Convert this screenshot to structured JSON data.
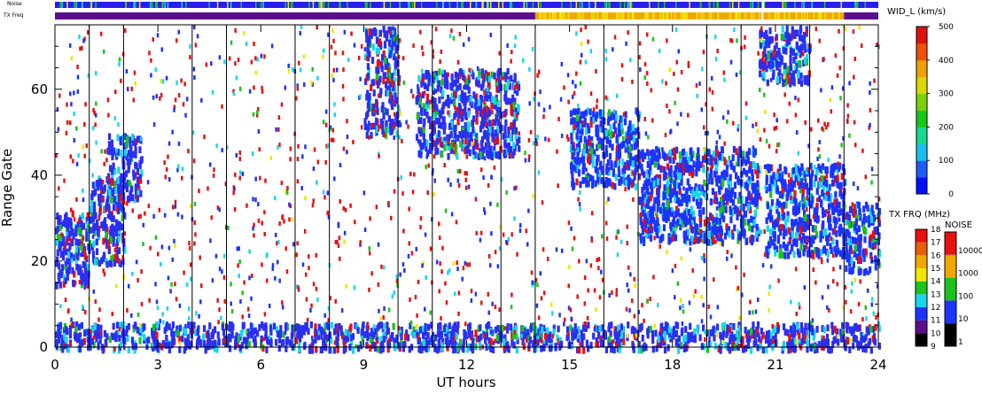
{
  "chart_data": {
    "type": "heatmap",
    "title": "",
    "xlabel": "UT hours",
    "ylabel": "Range Gate",
    "xlim": [
      0,
      24
    ],
    "ylim": [
      0,
      75
    ],
    "x_ticks": [
      0,
      3,
      6,
      9,
      12,
      15,
      18,
      21,
      24
    ],
    "y_ticks": [
      0,
      20,
      40,
      60
    ],
    "vertical_lines_at_hours": [
      1,
      2,
      4,
      5,
      7,
      8,
      10,
      11,
      13,
      14,
      16,
      17,
      19,
      20,
      22,
      23
    ],
    "grid": false,
    "top_strips": [
      {
        "label": "Noise",
        "dominant_color": "#2a1df0",
        "segments": [
          {
            "start": 0,
            "end": 24,
            "color": "#2a1df0"
          }
        ],
        "gap_near_hours": [
          20.6
        ]
      },
      {
        "label": "TX Freq",
        "segments": [
          {
            "start": 0,
            "end": 14,
            "color": "#5a0f8c"
          },
          {
            "start": 14,
            "end": 20.6,
            "color": "#f0a800"
          },
          {
            "start": 20.6,
            "end": 20.65,
            "color": "#ffffff"
          },
          {
            "start": 20.65,
            "end": 23,
            "color": "#f0a800"
          },
          {
            "start": 23,
            "end": 24,
            "color": "#5a0f8c"
          }
        ]
      }
    ],
    "scatter_regions": [
      {
        "hours": [
          0.0,
          1.0
        ],
        "gates": [
          15,
          32
        ],
        "color": "#2a2ff0"
      },
      {
        "hours": [
          1.0,
          2.0
        ],
        "gates": [
          20,
          40
        ],
        "color": "#2a2ff0"
      },
      {
        "hours": [
          1.5,
          2.5
        ],
        "gates": [
          35,
          50
        ],
        "color": "#2a2ff0"
      },
      {
        "hours": [
          9.0,
          10.0
        ],
        "gates": [
          50,
          75
        ],
        "color": "#2a2ff0"
      },
      {
        "hours": [
          10.5,
          13.5
        ],
        "gates": [
          45,
          65
        ],
        "color": "#2a2ff0"
      },
      {
        "hours": [
          15.0,
          17.0
        ],
        "gates": [
          38,
          56
        ],
        "color": "#1d33ff"
      },
      {
        "hours": [
          17.0,
          20.5
        ],
        "gates": [
          25,
          47
        ],
        "color": "#1d33ff"
      },
      {
        "hours": [
          20.7,
          23.0
        ],
        "gates": [
          22,
          43
        ],
        "color": "#1d33ff"
      },
      {
        "hours": [
          23.0,
          24.0
        ],
        "gates": [
          18,
          34
        ],
        "color": "#1d33ff"
      },
      {
        "hours": [
          20.5,
          22.0
        ],
        "gates": [
          62,
          75
        ],
        "color": "#2a2ff0"
      },
      {
        "hours": [
          0.0,
          24.0
        ],
        "gates": [
          0,
          6
        ],
        "color": "#2a2ff0"
      }
    ],
    "colorbars": [
      {
        "name": "WID_L (km/s)",
        "ticks": [
          0,
          100,
          200,
          300,
          400,
          500
        ]
      },
      {
        "name": "TX FRQ (MHz)",
        "ticks": [
          9,
          10,
          11,
          12,
          13,
          14,
          15,
          16,
          17,
          18
        ]
      },
      {
        "name": "NOISE",
        "ticks": [
          "1",
          "10",
          "100",
          "1000",
          "10000"
        ]
      }
    ]
  },
  "labels": {
    "noise_strip": "Noise",
    "txfreq_strip": "TX Freq",
    "xlabel": "UT hours",
    "ylabel": "Range Gate",
    "wid_title": "WID_L (km/s)",
    "txfrq_title": "TX FRQ (MHz)",
    "noise_title": "NOISE"
  },
  "colors": {
    "blue": "#1d33ff",
    "cyan": "#18d7ec",
    "green": "#1cc31c",
    "red": "#e81010",
    "yellow": "#f0e600",
    "orange": "#f0a800",
    "purple": "#5a0f8c",
    "black": "#000000"
  }
}
